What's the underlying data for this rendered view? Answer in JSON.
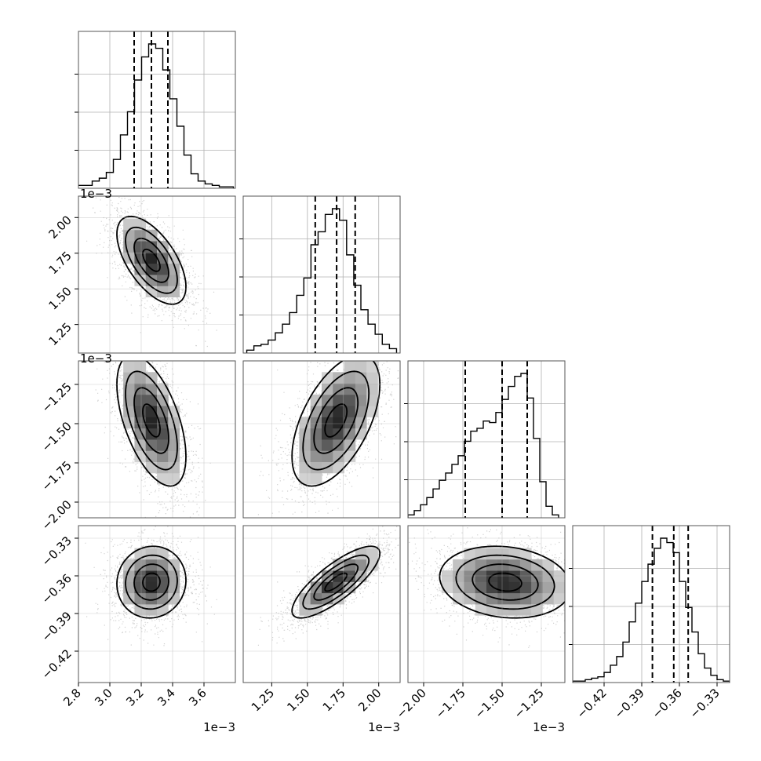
{
  "chart_data": {
    "type": "corner",
    "n_params": 4,
    "colors": {
      "line": "#000000",
      "grid": "#b0b0b0",
      "scatter": "#9a9a9a",
      "background": "#ffffff"
    },
    "grid": true,
    "params": [
      {
        "range": [
          2.8,
          3.8
        ],
        "ticks": [
          2.8,
          3.0,
          3.2,
          3.4,
          3.6
        ],
        "tick_labels": [
          "2.8",
          "3.0",
          "3.2",
          "3.4",
          "3.6"
        ],
        "offset_text": "1e−3",
        "quantiles": [
          3.155,
          3.265,
          3.37
        ],
        "mean": 3.265,
        "sd": 0.1,
        "hist_bins_x": [
          2.82,
          2.865,
          2.91,
          2.955,
          3.0,
          3.045,
          3.09,
          3.135,
          3.18,
          3.225,
          3.27,
          3.315,
          3.36,
          3.405,
          3.45,
          3.495,
          3.54,
          3.585,
          3.63,
          3.675,
          3.72,
          3.765
        ],
        "hist_counts": [
          0.02,
          0.02,
          0.05,
          0.07,
          0.11,
          0.2,
          0.37,
          0.53,
          0.75,
          0.91,
          1.0,
          0.97,
          0.82,
          0.62,
          0.43,
          0.23,
          0.1,
          0.05,
          0.03,
          0.02,
          0.01,
          0.01
        ]
      },
      {
        "range": [
          1.05,
          2.15
        ],
        "ticks": [
          1.25,
          1.5,
          1.75,
          2.0
        ],
        "tick_labels": [
          "1.25",
          "1.50",
          "1.75",
          "2.00"
        ],
        "offset_text": "1e−3",
        "quantiles": [
          1.555,
          1.705,
          1.835
        ],
        "mean": 1.7,
        "sd": 0.14,
        "hist_bins_x": [
          1.1,
          1.15,
          1.2,
          1.25,
          1.3,
          1.35,
          1.4,
          1.45,
          1.5,
          1.55,
          1.6,
          1.65,
          1.7,
          1.75,
          1.8,
          1.85,
          1.9,
          1.95,
          2.0,
          2.05,
          2.1
        ],
        "hist_counts": [
          0.02,
          0.05,
          0.06,
          0.09,
          0.14,
          0.2,
          0.28,
          0.4,
          0.52,
          0.75,
          0.84,
          0.96,
          1.0,
          0.92,
          0.68,
          0.47,
          0.3,
          0.2,
          0.13,
          0.06,
          0.03
        ]
      },
      {
        "range": [
          -2.1,
          -1.1
        ],
        "ticks": [
          -2.0,
          -1.75,
          -1.5,
          -1.25
        ],
        "tick_labels": [
          "−2.00",
          "−1.75",
          "−1.50",
          "−1.25"
        ],
        "offset_text": "1e−3",
        "quantiles": [
          -1.735,
          -1.5,
          -1.34
        ],
        "mean": -1.48,
        "sd": 0.19,
        "hist_bins_x": [
          -2.08,
          -2.04,
          -2.0,
          -1.96,
          -1.92,
          -1.88,
          -1.84,
          -1.8,
          -1.76,
          -1.72,
          -1.68,
          -1.64,
          -1.6,
          -1.56,
          -1.52,
          -1.48,
          -1.44,
          -1.4,
          -1.36,
          -1.32,
          -1.28,
          -1.24,
          -1.2,
          -1.16
        ],
        "hist_counts": [
          0.02,
          0.05,
          0.09,
          0.14,
          0.2,
          0.26,
          0.31,
          0.37,
          0.43,
          0.53,
          0.6,
          0.62,
          0.67,
          0.66,
          0.73,
          0.82,
          0.91,
          0.98,
          1.0,
          0.83,
          0.55,
          0.25,
          0.08,
          0.02
        ]
      },
      {
        "range": [
          -0.445,
          -0.32
        ],
        "ticks": [
          -0.42,
          -0.39,
          -0.36,
          -0.33
        ],
        "tick_labels": [
          "−0.42",
          "−0.39",
          "−0.36",
          "−0.33"
        ],
        "offset_text": "",
        "quantiles": [
          -0.3815,
          -0.3645,
          -0.353
        ],
        "mean": -0.365,
        "sd": 0.013,
        "hist_bins_x": [
          -0.4425,
          -0.4375,
          -0.4325,
          -0.4275,
          -0.4225,
          -0.4175,
          -0.4125,
          -0.4075,
          -0.4025,
          -0.3975,
          -0.3925,
          -0.3875,
          -0.3825,
          -0.3775,
          -0.3725,
          -0.3675,
          -0.3625,
          -0.3575,
          -0.3525,
          -0.3475,
          -0.3425,
          -0.3375,
          -0.3325,
          -0.3275,
          -0.3225
        ],
        "hist_counts": [
          0.01,
          0.01,
          0.02,
          0.03,
          0.04,
          0.07,
          0.12,
          0.18,
          0.28,
          0.42,
          0.55,
          0.7,
          0.82,
          0.93,
          1.0,
          0.97,
          0.9,
          0.7,
          0.52,
          0.35,
          0.2,
          0.1,
          0.05,
          0.02,
          0.01
        ]
      }
    ],
    "correlations": {
      "1-0": -0.6,
      "2-0": -0.55,
      "2-1": 0.55,
      "3-0": 0.05,
      "3-1": 0.8,
      "3-2": -0.15
    },
    "contour_levels_sigma": [
      0.5,
      1.0,
      1.5,
      2.0
    ]
  }
}
